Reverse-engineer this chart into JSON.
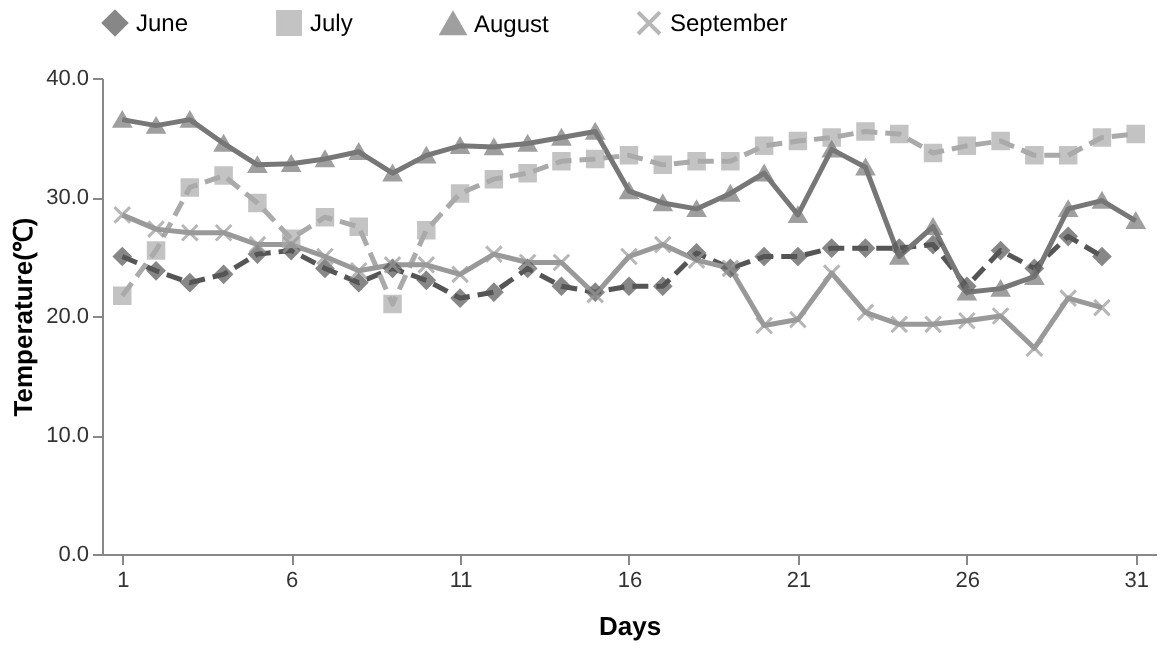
{
  "chart_data": {
    "type": "line",
    "xlabel": "Days",
    "ylabel": "Temperature(℃)",
    "x": [
      1,
      2,
      3,
      4,
      5,
      6,
      7,
      8,
      9,
      10,
      11,
      12,
      13,
      14,
      15,
      16,
      17,
      18,
      19,
      20,
      21,
      22,
      23,
      24,
      25,
      26,
      27,
      28,
      29,
      30,
      31
    ],
    "series": [
      {
        "name": "June",
        "color": "#555555",
        "line_style": "dashed",
        "marker": "diamond",
        "values": [
          25,
          23.8,
          22.8,
          23.5,
          25.2,
          25.5,
          24,
          22.8,
          24,
          23,
          21.5,
          22,
          24,
          22.5,
          22,
          22.5,
          22.5,
          25.3,
          24,
          25,
          25,
          25.7,
          25.7,
          25.7,
          26,
          22.5,
          25.5,
          24,
          26.7,
          25,
          null
        ]
      },
      {
        "name": "July",
        "color": "#aaaaaa",
        "line_style": "dashed",
        "marker": "square",
        "values": [
          21.7,
          25.5,
          30.8,
          31.8,
          29.5,
          26.5,
          28.3,
          27.5,
          21,
          27.2,
          30.3,
          31.5,
          32,
          33,
          33.2,
          33.5,
          32.7,
          33,
          33,
          34.3,
          34.7,
          35,
          35.5,
          35.3,
          33.7,
          34.3,
          34.7,
          33.5,
          33.5,
          35,
          35.3
        ]
      },
      {
        "name": "August",
        "color": "#777777",
        "line_style": "solid",
        "marker": "triangle",
        "values": [
          36.5,
          36,
          36.5,
          34.5,
          32.7,
          32.8,
          33.2,
          33.8,
          32,
          33.5,
          34.3,
          34.2,
          34.5,
          35,
          35.5,
          30.5,
          29.5,
          29,
          30.3,
          32,
          28.5,
          34,
          32.5,
          25,
          27.5,
          22,
          22.3,
          23.3,
          29,
          29.7,
          28
        ]
      },
      {
        "name": "September",
        "color": "#999999",
        "line_style": "solid",
        "marker": "cross",
        "values": [
          28.5,
          27.3,
          27,
          27,
          26,
          26,
          25,
          23.8,
          24.3,
          24.3,
          23.5,
          25.2,
          24.5,
          24.5,
          21.8,
          25,
          26,
          24.7,
          24,
          19.2,
          19.7,
          23.6,
          20.3,
          19.3,
          19.3,
          19.6,
          20,
          17.3,
          21.5,
          20.7,
          null
        ]
      }
    ],
    "xlim": [
      0.4,
      31.6
    ],
    "xticks": [
      1,
      6,
      11,
      16,
      21,
      26,
      31
    ],
    "ylim": [
      0,
      40
    ],
    "yticks": [
      {
        "value": 0,
        "label": "0.0"
      },
      {
        "value": 10,
        "label": "10.0"
      },
      {
        "value": 20,
        "label": "20.0"
      },
      {
        "value": 30,
        "label": "30.0"
      },
      {
        "value": 40,
        "label": "40.0"
      }
    ],
    "grid": false,
    "legend": "top"
  }
}
